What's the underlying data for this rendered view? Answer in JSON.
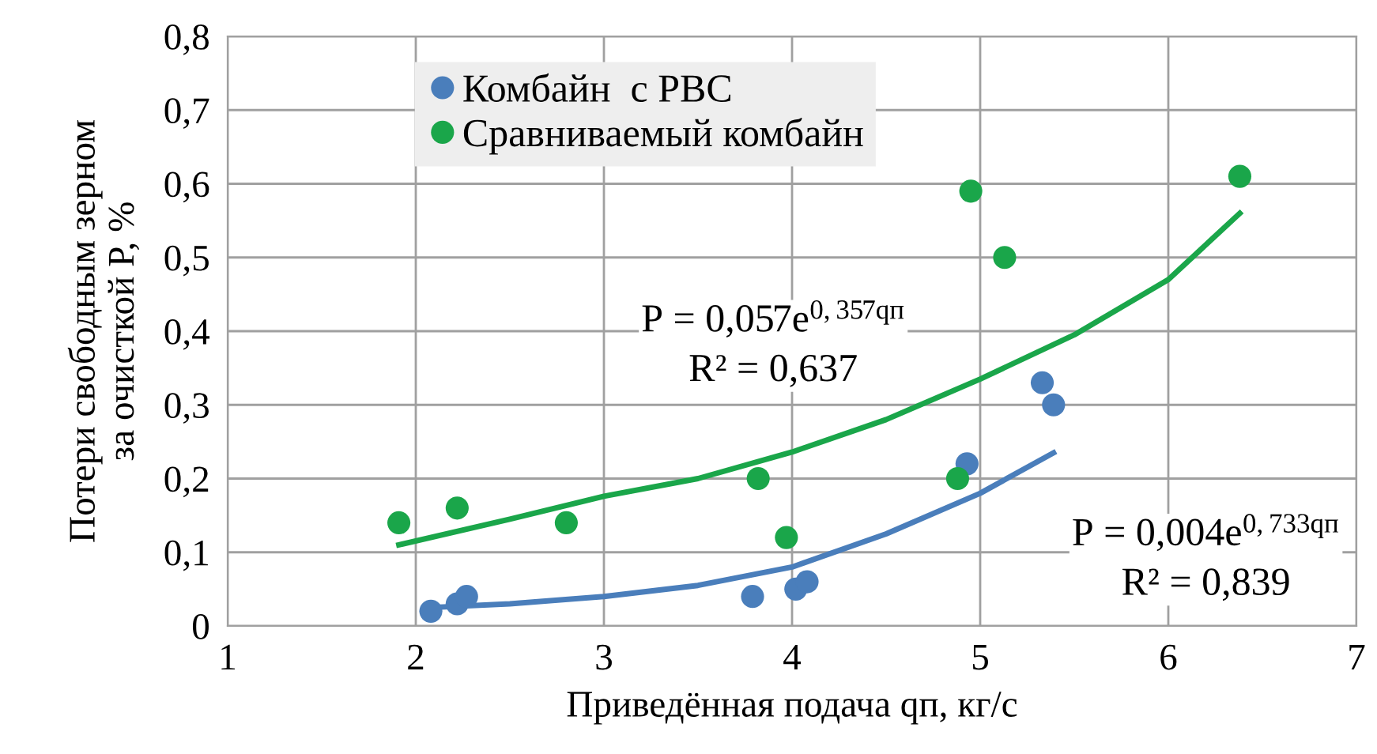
{
  "chart_data": {
    "type": "scatter",
    "xlabel": "Приведённая подача qп, кг/с",
    "ylabel": "Потери свободным зерном\nза очисткой Р, %",
    "xlim": [
      1,
      7
    ],
    "xticks": [
      1,
      2,
      3,
      4,
      5,
      6,
      7
    ],
    "ylim": [
      0,
      0.8
    ],
    "yticks": [
      0,
      {
        "value": 0.1,
        "label": "0,1"
      },
      {
        "value": 0.2,
        "label": "0,2"
      },
      {
        "value": 0.3,
        "label": "0,3"
      },
      {
        "value": 0.4,
        "label": "0,4"
      },
      {
        "value": 0.5,
        "label": "0,5"
      },
      {
        "value": 0.6,
        "label": "0,6"
      },
      {
        "value": 0.7,
        "label": "0,7"
      },
      {
        "value": 0.8,
        "label": "0,8"
      }
    ],
    "grid": true,
    "legend": "top",
    "series": [
      {
        "type": "line",
        "color": "#4a7ebb",
        "x": [
          2.08,
          2.5,
          3,
          3.5,
          4,
          4.5,
          5,
          5.39
        ],
        "values": [
          0.025,
          0.03,
          0.04,
          0.055,
          0.08,
          0.125,
          0.18,
          0.235
        ]
      },
      {
        "type": "line",
        "color": "#1aa64a",
        "x": [
          1.91,
          2.5,
          3,
          3.5,
          4,
          4.5,
          5,
          5.5,
          6,
          6.38
        ],
        "values": [
          0.11,
          0.145,
          0.176,
          0.2,
          0.236,
          0.28,
          0.335,
          0.395,
          0.47,
          0.56
        ]
      },
      {
        "name": "Комбайн  с РВС",
        "color": "#4a7ebb",
        "marker": "circle",
        "x": [
          2.08,
          2.22,
          2.27,
          3.79,
          4.02,
          4.08,
          4.93,
          5.33,
          5.39
        ],
        "values": [
          0.02,
          0.03,
          0.04,
          0.04,
          0.05,
          0.06,
          0.22,
          0.33,
          0.3
        ]
      },
      {
        "name": "Сравниваемый комбайн",
        "color": "#1aa64a",
        "marker": "circle",
        "x": [
          1.91,
          2.22,
          2.8,
          3.82,
          3.97,
          4.88,
          4.95,
          5.13,
          6.38
        ],
        "values": [
          0.14,
          0.16,
          0.14,
          0.2,
          0.12,
          0.2,
          0.59,
          0.5,
          0.61
        ]
      }
    ],
    "annotations": [
      "P = 0,057e$^{0,357qп}$\nR² = 0,637",
      "P = 0,004e$^{0,733qп}$\nR² = 0,839"
    ]
  }
}
